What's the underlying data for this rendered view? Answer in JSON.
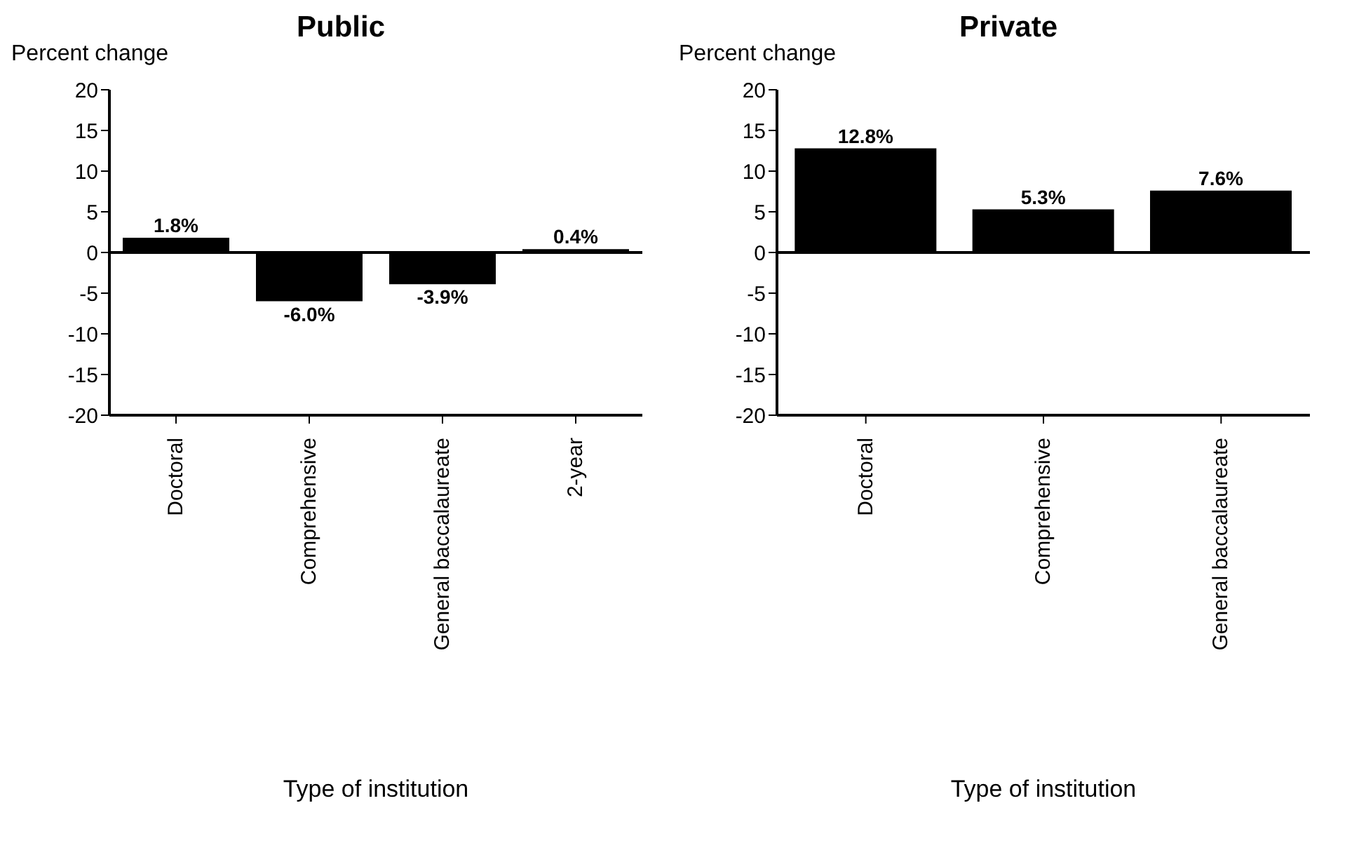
{
  "chart_data": [
    {
      "type": "bar",
      "title": "Public",
      "ylabel": "Percent change",
      "xlabel": "Type of institution",
      "categories": [
        "Doctoral",
        "Comprehensive",
        "General baccalaureate",
        "2-year"
      ],
      "values": [
        1.8,
        -6.0,
        -3.9,
        0.4
      ],
      "value_labels": [
        "1.8%",
        "-6.0%",
        "-3.9%",
        "0.4%"
      ],
      "color": "#000000",
      "ylim": [
        -20,
        20
      ],
      "yticks": [
        -20,
        -15,
        -10,
        -5,
        0,
        5,
        10,
        15,
        20
      ],
      "grid": false,
      "legend": false,
      "ref_lines": [
        {
          "axis": "y",
          "value": 0
        }
      ]
    },
    {
      "type": "bar",
      "title": "Private",
      "ylabel": "Percent change",
      "xlabel": "Type of institution",
      "categories": [
        "Doctoral",
        "Comprehensive",
        "General baccalaureate"
      ],
      "values": [
        12.8,
        5.3,
        7.6
      ],
      "value_labels": [
        "12.8%",
        "5.3%",
        "7.6%"
      ],
      "color": "#000000",
      "ylim": [
        -20,
        20
      ],
      "yticks": [
        -20,
        -15,
        -10,
        -5,
        0,
        5,
        10,
        15,
        20
      ],
      "grid": false,
      "legend": false,
      "ref_lines": [
        {
          "axis": "y",
          "value": 0
        }
      ]
    }
  ]
}
